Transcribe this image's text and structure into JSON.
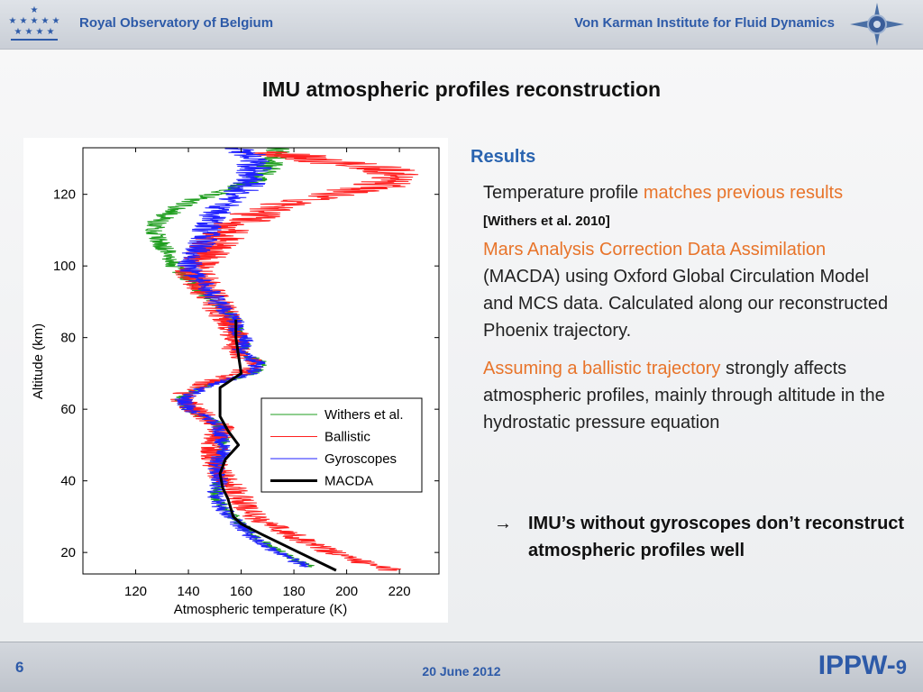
{
  "header": {
    "left_org": "Royal Observatory of Belgium",
    "right_org": "Von Karman Institute for Fluid Dynamics",
    "left_logo_icon": "royal-observatory-stars-logo",
    "right_logo_icon": "vki-compass-logo"
  },
  "title": "IMU atmospheric profiles reconstruction",
  "results": {
    "heading": "Results",
    "p1_text": "Temperature profile",
    "p1_highlight": "matches previous results",
    "p1_citation": "[Withers et al. 2010]",
    "p2_highlight": "Mars Analysis Correction Data Assimilation",
    "p2_text": "(MACDA) using Oxford Global Circulation Model and MCS data. Calculated along our reconstructed Phoenix trajectory.",
    "p3_highlight": "Assuming a ballistic trajectory",
    "p3_text": "strongly affects atmospheric profiles, mainly through altitude in the hydrostatic pressure equation"
  },
  "conclusion": {
    "arrow": "→",
    "text": "IMU’s without gyroscopes don’t reconstruct atmospheric profiles well"
  },
  "footer": {
    "page": "6",
    "date": "20 June 2012",
    "brand": "IPPW-",
    "brand_num": "9"
  },
  "colors": {
    "accent_blue": "#2a64b0",
    "highlight_orange": "#e8742a",
    "withers": "#1f9e1f",
    "ballistic": "#ff2020",
    "gyroscopes": "#2020ff",
    "macda": "#000000"
  },
  "chart_data": {
    "type": "line",
    "xlabel": "Atmospheric temperature (K)",
    "ylabel": "Altitude (km)",
    "xlim": [
      100,
      235
    ],
    "ylim": [
      14,
      133
    ],
    "xticks": [
      120,
      140,
      160,
      180,
      200,
      220
    ],
    "yticks": [
      20,
      40,
      60,
      80,
      100,
      120
    ],
    "legend_position": "lower-right",
    "series": [
      {
        "name": "Withers et al.",
        "color": "#1f9e1f",
        "noise": 4,
        "y": [
          16,
          20,
          25,
          30,
          33,
          36,
          40,
          44,
          48,
          52,
          56,
          60,
          63,
          65,
          67,
          70,
          73,
          76,
          79,
          82,
          85,
          88,
          91,
          94,
          97,
          100,
          103,
          106,
          109,
          112,
          115,
          118,
          121,
          124,
          127,
          130,
          133
        ],
        "x": [
          186,
          175,
          164,
          157,
          153,
          150,
          152,
          150,
          153,
          153,
          151,
          140,
          137,
          142,
          148,
          165,
          168,
          160,
          162,
          158,
          158,
          152,
          148,
          143,
          139,
          135,
          133,
          130,
          128,
          128,
          133,
          140,
          155,
          165,
          170,
          172,
          175
        ]
      },
      {
        "name": "Ballistic",
        "color": "#ff2020",
        "noise": 12,
        "y": [
          15,
          17,
          20,
          23,
          26,
          29,
          32,
          35,
          38,
          42,
          45,
          50,
          55,
          60,
          63,
          65,
          67,
          70,
          73,
          76,
          80,
          85,
          90,
          95,
          100,
          104,
          108,
          112,
          116,
          118,
          120,
          122,
          124,
          126,
          128,
          130,
          132
        ],
        "x": [
          218,
          207,
          195,
          185,
          176,
          167,
          162,
          160,
          157,
          152,
          150,
          150,
          152,
          142,
          138,
          140,
          145,
          160,
          165,
          158,
          158,
          155,
          150,
          145,
          142,
          148,
          152,
          160,
          170,
          182,
          195,
          210,
          220,
          218,
          205,
          185,
          170
        ]
      },
      {
        "name": "Gyroscopes",
        "color": "#2020ff",
        "noise": 6,
        "y": [
          16,
          20,
          25,
          30,
          33,
          36,
          40,
          44,
          48,
          52,
          56,
          60,
          63,
          65,
          67,
          70,
          73,
          76,
          79,
          82,
          85,
          88,
          91,
          94,
          97,
          100,
          103,
          106,
          109,
          112,
          115,
          118,
          121,
          124,
          127,
          130,
          133
        ],
        "x": [
          185,
          174,
          163,
          156,
          152,
          150,
          152,
          150,
          153,
          153,
          151,
          140,
          138,
          143,
          149,
          164,
          166,
          159,
          162,
          158,
          158,
          153,
          150,
          147,
          143,
          140,
          142,
          145,
          147,
          147,
          150,
          155,
          160,
          165,
          165,
          163,
          160
        ]
      },
      {
        "name": "MACDA",
        "color": "#000000",
        "noise": 0,
        "y": [
          15,
          20,
          25,
          28,
          30,
          35,
          38,
          42,
          46,
          50,
          54,
          58,
          62,
          66,
          70,
          75,
          80,
          85
        ],
        "x": [
          196,
          182,
          168,
          160,
          157,
          155,
          153,
          152,
          154,
          159,
          155,
          152,
          152,
          152,
          160,
          159,
          158,
          158
        ]
      }
    ]
  }
}
